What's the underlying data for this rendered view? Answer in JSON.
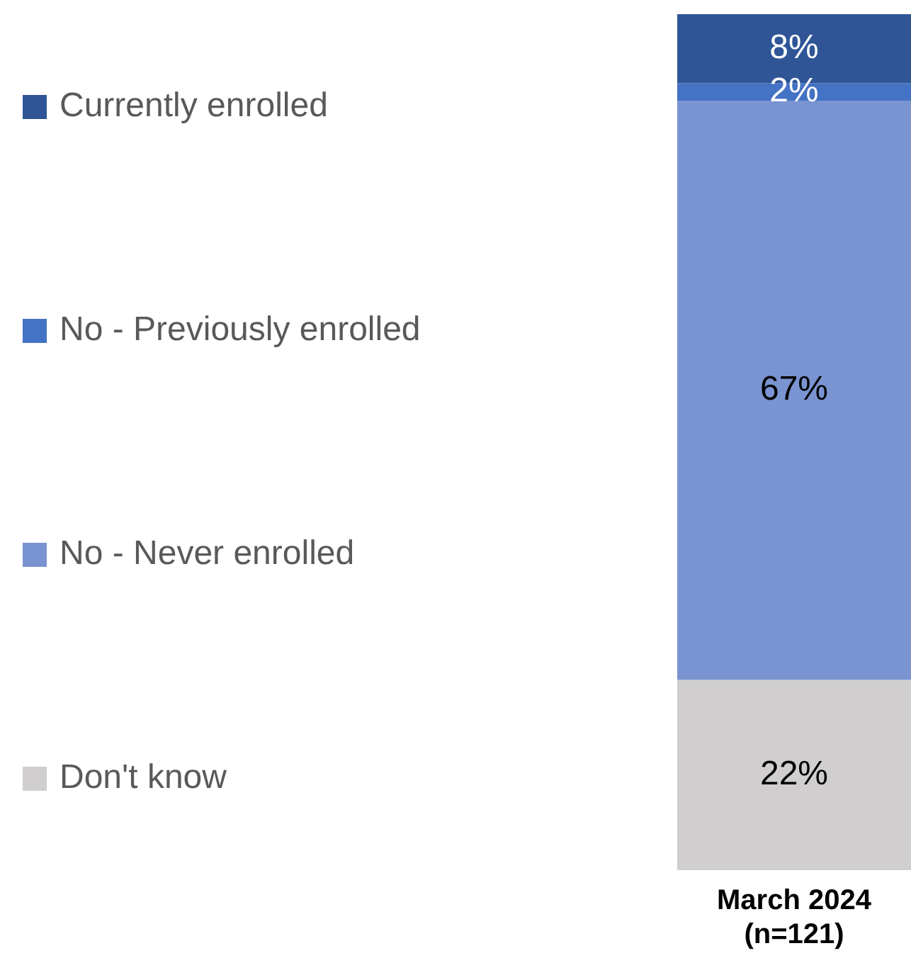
{
  "chart_data": {
    "type": "bar",
    "stacked": true,
    "categories": [
      "March 2024\n(n=121)"
    ],
    "series": [
      {
        "name": "Don't know",
        "color": "#d0cece",
        "values": [
          22
        ],
        "value_labels": [
          "22%"
        ]
      },
      {
        "name": "No - Never enrolled",
        "color": "#7a93d1",
        "values": [
          67
        ],
        "value_labels": [
          "67%"
        ]
      },
      {
        "name": "No - Previously enrolled",
        "color": "#4472c4",
        "values": [
          2
        ],
        "value_labels": [
          "2%"
        ]
      },
      {
        "name": "Currently enrolled",
        "color": "#2f5597",
        "values": [
          8
        ],
        "value_labels": [
          "8%"
        ]
      }
    ],
    "legend": "left"
  }
}
